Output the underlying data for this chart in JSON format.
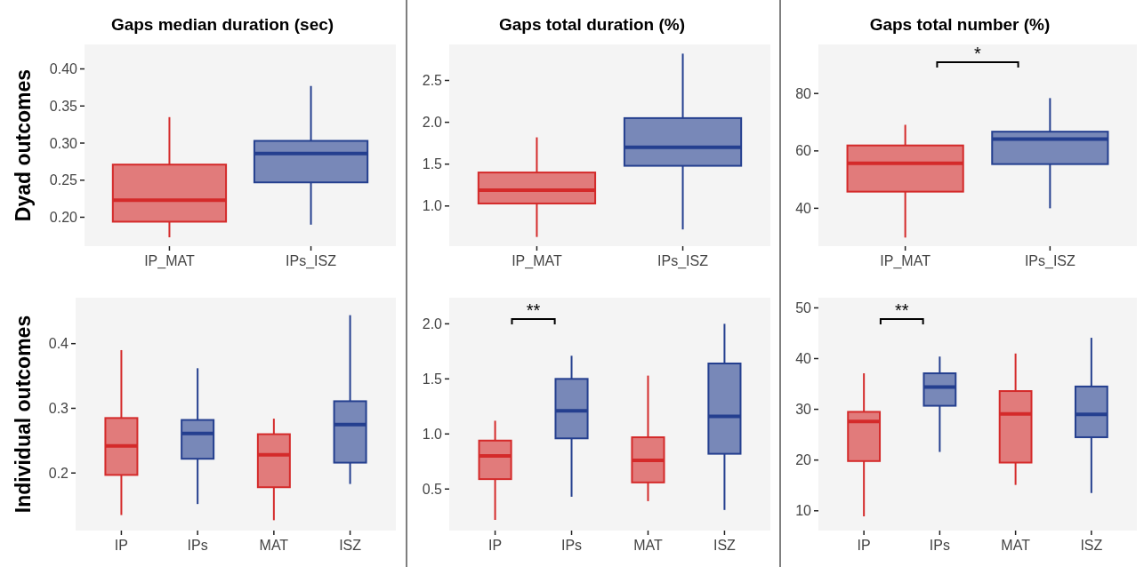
{
  "chart_data": [
    {
      "type": "box",
      "title": "Gaps median duration (sec)",
      "ylabel": "Dyad outcomes",
      "categories": [
        "IP_MAT",
        "IPs_ISZ"
      ],
      "colors": [
        "#d42a2a",
        "#243f8f"
      ],
      "ylim": [
        0.161,
        0.433
      ],
      "yticks": [
        {
          "value": 0.2,
          "label": "0.20"
        },
        {
          "value": 0.25,
          "label": "0.25"
        },
        {
          "value": 0.3,
          "label": "0.30"
        },
        {
          "value": 0.35,
          "label": "0.35"
        },
        {
          "value": 0.4,
          "label": "0.40"
        }
      ],
      "grid": false,
      "boxes": [
        {
          "low": 0.173,
          "q1": 0.194,
          "median": 0.223,
          "q3": 0.271,
          "high": 0.335
        },
        {
          "low": 0.19,
          "q1": 0.247,
          "median": 0.286,
          "q3": 0.303,
          "high": 0.377
        }
      ]
    },
    {
      "type": "box",
      "title": "Gaps total duration (%)",
      "categories": [
        "IP_MAT",
        "IPs_ISZ"
      ],
      "colors": [
        "#d42a2a",
        "#243f8f"
      ],
      "ylim": [
        0.52,
        2.93
      ],
      "yticks": [
        {
          "value": 1,
          "label": "1.0"
        },
        1.5,
        {
          "value": 2,
          "label": "2.0"
        },
        2.5
      ],
      "grid": false,
      "boxes": [
        {
          "low": 0.63,
          "q1": 1.03,
          "median": 1.19,
          "q3": 1.4,
          "high": 1.82
        },
        {
          "low": 0.72,
          "q1": 1.48,
          "median": 1.7,
          "q3": 2.05,
          "high": 2.82
        }
      ]
    },
    {
      "type": "box",
      "title": "Gaps total number (%)",
      "categories": [
        "IP_MAT",
        "IPs_ISZ"
      ],
      "colors": [
        "#d42a2a",
        "#243f8f"
      ],
      "ylim": [
        26.8,
        97.1
      ],
      "yticks": [
        40,
        60,
        80
      ],
      "grid": false,
      "annotations": [
        "*"
      ],
      "boxes": [
        {
          "low": 29.8,
          "q1": 45.8,
          "median": 55.7,
          "q3": 61.9,
          "high": 69.1
        },
        {
          "low": 40.0,
          "q1": 55.4,
          "median": 64.1,
          "q3": 66.7,
          "high": 78.4
        }
      ]
    },
    {
      "type": "box",
      "ylabel": "Individual outcomes",
      "categories": [
        "IP",
        "IPs",
        "MAT",
        "ISZ"
      ],
      "colors": [
        "#d42a2a",
        "#243f8f",
        "#d42a2a",
        "#243f8f"
      ],
      "ylim": [
        0.111,
        0.471
      ],
      "yticks": [
        0.2,
        0.3,
        0.4
      ],
      "grid": false,
      "boxes": [
        {
          "low": 0.135,
          "q1": 0.197,
          "median": 0.242,
          "q3": 0.285,
          "high": 0.39
        },
        {
          "low": 0.152,
          "q1": 0.222,
          "median": 0.261,
          "q3": 0.282,
          "high": 0.362
        },
        {
          "low": 0.127,
          "q1": 0.178,
          "median": 0.228,
          "q3": 0.26,
          "high": 0.284
        },
        {
          "low": 0.183,
          "q1": 0.216,
          "median": 0.275,
          "q3": 0.311,
          "high": 0.444
        }
      ]
    },
    {
      "type": "box",
      "categories": [
        "IP",
        "IPs",
        "MAT",
        "ISZ"
      ],
      "colors": [
        "#d42a2a",
        "#243f8f",
        "#d42a2a",
        "#243f8f"
      ],
      "ylim": [
        0.123,
        2.237
      ],
      "yticks": [
        0.5,
        {
          "value": 1,
          "label": "1.0"
        },
        1.5,
        {
          "value": 2,
          "label": "2.0"
        }
      ],
      "grid": false,
      "annotations": [
        "**"
      ],
      "boxes": [
        {
          "low": 0.22,
          "q1": 0.59,
          "median": 0.8,
          "q3": 0.94,
          "high": 1.12
        },
        {
          "low": 0.43,
          "q1": 0.96,
          "median": 1.21,
          "q3": 1.5,
          "high": 1.71
        },
        {
          "low": 0.39,
          "q1": 0.56,
          "median": 0.76,
          "q3": 0.97,
          "high": 1.53
        },
        {
          "low": 0.31,
          "q1": 0.82,
          "median": 1.16,
          "q3": 1.64,
          "high": 2.0
        }
      ]
    },
    {
      "type": "box",
      "categories": [
        "IP",
        "IPs",
        "MAT",
        "ISZ"
      ],
      "colors": [
        "#d42a2a",
        "#243f8f",
        "#d42a2a",
        "#243f8f"
      ],
      "ylim": [
        6.1,
        52.0
      ],
      "yticks": [
        10,
        20,
        30,
        40,
        50
      ],
      "grid": false,
      "annotations": [
        "**"
      ],
      "boxes": [
        {
          "low": 8.9,
          "q1": 19.8,
          "median": 27.6,
          "q3": 29.5,
          "high": 37.1
        },
        {
          "low": 21.6,
          "q1": 30.7,
          "median": 34.4,
          "q3": 37.1,
          "high": 40.4
        },
        {
          "low": 15.1,
          "q1": 19.5,
          "median": 29.1,
          "q3": 33.6,
          "high": 41.0
        },
        {
          "low": 13.5,
          "q1": 24.5,
          "median": 29.0,
          "q3": 34.5,
          "high": 44.1
        }
      ]
    }
  ]
}
